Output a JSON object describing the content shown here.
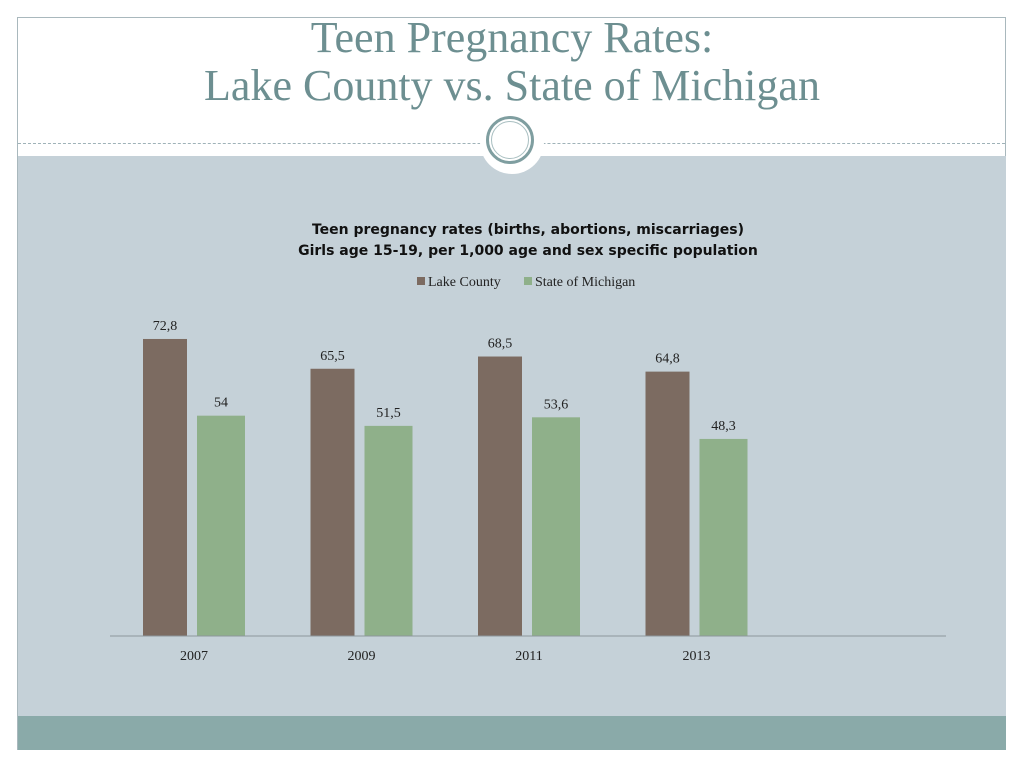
{
  "slide": {
    "title_line1": "Teen Pregnancy Rates:",
    "title_line2": "Lake County vs. State of Michigan"
  },
  "colors": {
    "lake_county": "#7c6b61",
    "state_of_michigan": "#8fb08a",
    "panel": "#c5d1d8",
    "footer": "#8aaaa9",
    "title": "#6d8f91"
  },
  "chart_data": {
    "type": "bar",
    "title": "Teen pregnancy rates (births, abortions, miscarriages)",
    "subtitle": "Girls age 15-19, per 1,000 age and sex specific population",
    "categories": [
      "2007",
      "2009",
      "2011",
      "2013"
    ],
    "series": [
      {
        "name": "Lake County",
        "values": [
          72.8,
          65.5,
          68.5,
          64.8
        ],
        "labels": [
          "72,8",
          "65,5",
          "68,5",
          "64,8"
        ]
      },
      {
        "name": "State of Michigan",
        "values": [
          54,
          51.5,
          53.6,
          48.3
        ],
        "labels": [
          "54",
          "51,5",
          "53,6",
          "48,3"
        ]
      }
    ],
    "ylim": [
      0,
      75
    ],
    "grid": false,
    "legend": "top-center"
  }
}
